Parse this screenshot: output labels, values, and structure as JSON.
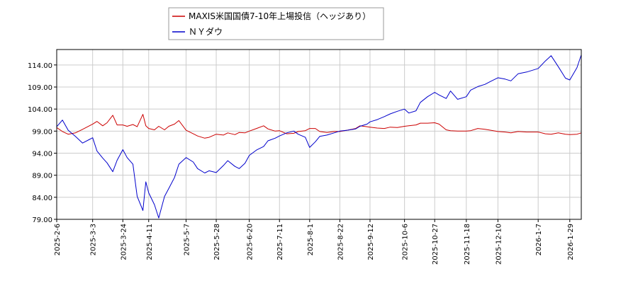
{
  "chart_data": {
    "type": "line",
    "title": "",
    "xlabel": "",
    "ylabel": "",
    "ylim": [
      79.0,
      117.5
    ],
    "y_ticks": [
      "79.00",
      "84.00",
      "89.00",
      "94.00",
      "99.00",
      "104.00",
      "109.00",
      "114.00"
    ],
    "x_ticks": [
      "2025-2-6",
      "2025-3-3",
      "2025-3-24",
      "2025-4-11",
      "2025-5-7",
      "2025-5-28",
      "2025-6-20",
      "2025-7-11",
      "2025-8-1",
      "2025-8-22",
      "2025-9-12",
      "2025-10-6",
      "2025-10-27",
      "2025-11-18",
      "2025-12-10",
      "2026-1-7",
      "2026-1-29"
    ],
    "grid": true,
    "legend_position": "top-center",
    "x": [
      "2025-2-6",
      "2025-2-10",
      "2025-2-14",
      "2025-2-19",
      "2025-2-24",
      "2025-3-3",
      "2025-3-6",
      "2025-3-10",
      "2025-3-13",
      "2025-3-17",
      "2025-3-20",
      "2025-3-24",
      "2025-3-27",
      "2025-3-31",
      "2025-4-3",
      "2025-4-7",
      "2025-4-9",
      "2025-4-11",
      "2025-4-15",
      "2025-4-18",
      "2025-4-22",
      "2025-4-25",
      "2025-4-29",
      "2025-5-2",
      "2025-5-7",
      "2025-5-12",
      "2025-5-15",
      "2025-5-20",
      "2025-5-23",
      "2025-5-28",
      "2025-6-2",
      "2025-6-5",
      "2025-6-10",
      "2025-6-13",
      "2025-6-17",
      "2025-6-20",
      "2025-6-25",
      "2025-6-30",
      "2025-7-3",
      "2025-7-8",
      "2025-7-11",
      "2025-7-16",
      "2025-7-21",
      "2025-7-24",
      "2025-7-29",
      "2025-8-1",
      "2025-8-5",
      "2025-8-8",
      "2025-8-13",
      "2025-8-18",
      "2025-8-22",
      "2025-8-27",
      "2025-9-2",
      "2025-9-5",
      "2025-9-10",
      "2025-9-12",
      "2025-9-17",
      "2025-9-22",
      "2025-9-26",
      "2025-10-1",
      "2025-10-6",
      "2025-10-9",
      "2025-10-14",
      "2025-10-17",
      "2025-10-22",
      "2025-10-27",
      "2025-10-30",
      "2025-11-4",
      "2025-11-7",
      "2025-11-12",
      "2025-11-18",
      "2025-11-21",
      "2025-11-26",
      "2025-12-1",
      "2025-12-5",
      "2025-12-10",
      "2025-12-15",
      "2025-12-19",
      "2025-12-24",
      "2025-12-30",
      "2026-1-7",
      "2026-1-12",
      "2026-1-16",
      "2026-1-21",
      "2026-1-26",
      "2026-1-29",
      "2026-2-3",
      "2026-2-6"
    ],
    "series": [
      {
        "name": "MAXIS米国国債7-10年上場投信（ヘッジあり）",
        "color": "#cc0000",
        "values": [
          99.8,
          98.9,
          98.3,
          98.6,
          99.4,
          100.6,
          101.2,
          100.2,
          100.9,
          102.6,
          100.4,
          100.4,
          100.1,
          100.5,
          100.0,
          102.8,
          100.2,
          99.6,
          99.3,
          100.1,
          99.3,
          100.1,
          100.6,
          101.4,
          99.2,
          98.4,
          97.9,
          97.4,
          97.6,
          98.3,
          98.1,
          98.6,
          98.2,
          98.7,
          98.6,
          99.0,
          99.6,
          100.2,
          99.5,
          99.0,
          99.1,
          98.4,
          98.5,
          98.9,
          99.1,
          99.6,
          99.6,
          98.9,
          98.7,
          98.9,
          98.9,
          99.2,
          99.6,
          100.2,
          100.0,
          99.9,
          99.7,
          99.6,
          99.9,
          99.8,
          100.1,
          100.2,
          100.4,
          100.8,
          100.8,
          100.9,
          100.6,
          99.3,
          99.1,
          99.0,
          99.0,
          99.1,
          99.6,
          99.4,
          99.2,
          98.9,
          98.8,
          98.6,
          98.9,
          98.8,
          98.8,
          98.4,
          98.3,
          98.6,
          98.3,
          98.2,
          98.3,
          98.6
        ]
      },
      {
        "name": "ＮＹダウ",
        "color": "#0000cc",
        "values": [
          100.0,
          101.5,
          99.2,
          97.8,
          96.3,
          97.5,
          94.5,
          92.9,
          91.8,
          89.8,
          92.4,
          94.8,
          93.0,
          91.5,
          84.2,
          81.0,
          87.5,
          85.0,
          82.3,
          79.3,
          84.2,
          86.0,
          88.5,
          91.5,
          93.0,
          92.0,
          90.5,
          89.5,
          90.0,
          89.6,
          91.2,
          92.3,
          91.0,
          90.5,
          91.7,
          93.5,
          94.7,
          95.5,
          96.8,
          97.4,
          97.9,
          98.6,
          99.0,
          98.3,
          97.6,
          95.3,
          96.6,
          97.8,
          98.1,
          98.6,
          99.0,
          99.2,
          99.5,
          100.1,
          100.6,
          101.1,
          101.6,
          102.3,
          102.9,
          103.5,
          104.0,
          103.1,
          103.6,
          105.5,
          106.8,
          107.8,
          107.2,
          106.4,
          108.1,
          106.2,
          106.8,
          108.3,
          109.1,
          109.6,
          110.3,
          111.1,
          110.8,
          110.4,
          112.0,
          112.4,
          113.2,
          114.9,
          116.1,
          113.6,
          111.0,
          110.6,
          113.4,
          116.3
        ]
      }
    ]
  }
}
